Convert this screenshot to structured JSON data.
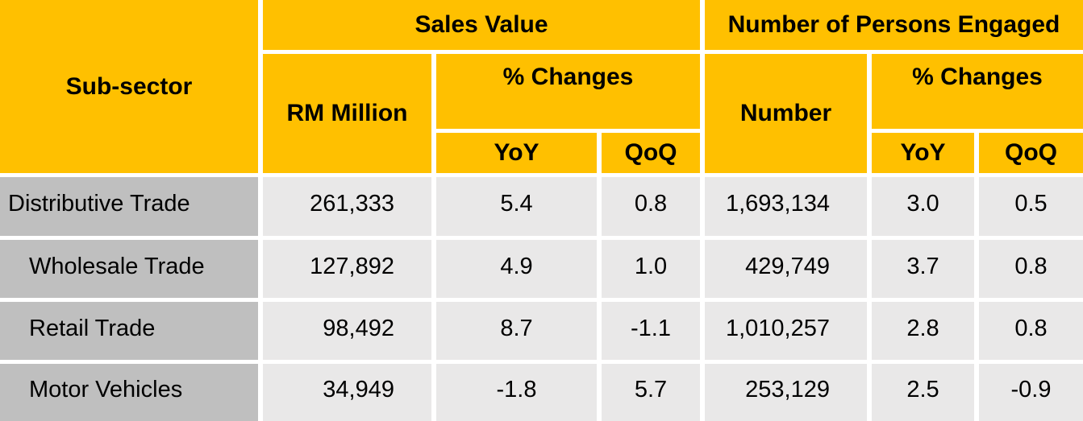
{
  "table": {
    "colors": {
      "header_bg": "#FFC000",
      "label_bg": "#BFBFBF",
      "cell_bg": "#E9E8E8",
      "separator": "#FFFFFF",
      "text": "#000000"
    },
    "header": {
      "sub_sector": "Sub-sector",
      "sales_value": "Sales Value",
      "persons_engaged": "Number of Persons Engaged",
      "rm_million": "RM Million",
      "pct_changes_sales": "% Changes",
      "pct_changes_persons": "% Changes",
      "number": "Number",
      "yoy_sales": "YoY",
      "qoq_sales": "QoQ",
      "yoy_persons": "YoY",
      "qoq_persons": "QoQ"
    },
    "rows": [
      {
        "label": "Distributive Trade",
        "values": [
          "261,333",
          "5.4",
          "0.8",
          "1,693,134",
          "3.0",
          "0.5"
        ]
      },
      {
        "label": "Wholesale Trade",
        "values": [
          "127,892",
          "4.9",
          "1.0",
          "429,749",
          "3.7",
          "0.8"
        ]
      },
      {
        "label": "Retail Trade",
        "values": [
          "98,492",
          "8.7",
          "-1.1",
          "1,010,257",
          "2.8",
          "0.8"
        ]
      },
      {
        "label": "Motor Vehicles",
        "values": [
          "34,949",
          "-1.8",
          "5.7",
          "253,129",
          "2.5",
          "-0.9"
        ]
      }
    ]
  },
  "chart_data": {
    "type": "table",
    "title": "",
    "column_groups": [
      {
        "label": "Sales Value",
        "columns": [
          "RM Million",
          "% Changes YoY",
          "% Changes QoQ"
        ]
      },
      {
        "label": "Number of Persons Engaged",
        "columns": [
          "Number",
          "% Changes YoY",
          "% Changes QoQ"
        ]
      }
    ],
    "row_header": "Sub-sector",
    "rows": [
      {
        "sub_sector": "Distributive Trade",
        "sales_rm_million": 261333,
        "sales_yoy_pct": 5.4,
        "sales_qoq_pct": 0.8,
        "persons_number": 1693134,
        "persons_yoy_pct": 3.0,
        "persons_qoq_pct": 0.5
      },
      {
        "sub_sector": "Wholesale Trade",
        "sales_rm_million": 127892,
        "sales_yoy_pct": 4.9,
        "sales_qoq_pct": 1.0,
        "persons_number": 429749,
        "persons_yoy_pct": 3.7,
        "persons_qoq_pct": 0.8
      },
      {
        "sub_sector": "Retail Trade",
        "sales_rm_million": 98492,
        "sales_yoy_pct": 8.7,
        "sales_qoq_pct": -1.1,
        "persons_number": 1010257,
        "persons_yoy_pct": 2.8,
        "persons_qoq_pct": 0.8
      },
      {
        "sub_sector": "Motor Vehicles",
        "sales_rm_million": 34949,
        "sales_yoy_pct": -1.8,
        "sales_qoq_pct": 5.7,
        "persons_number": 253129,
        "persons_yoy_pct": 2.5,
        "persons_qoq_pct": -0.9
      }
    ]
  }
}
